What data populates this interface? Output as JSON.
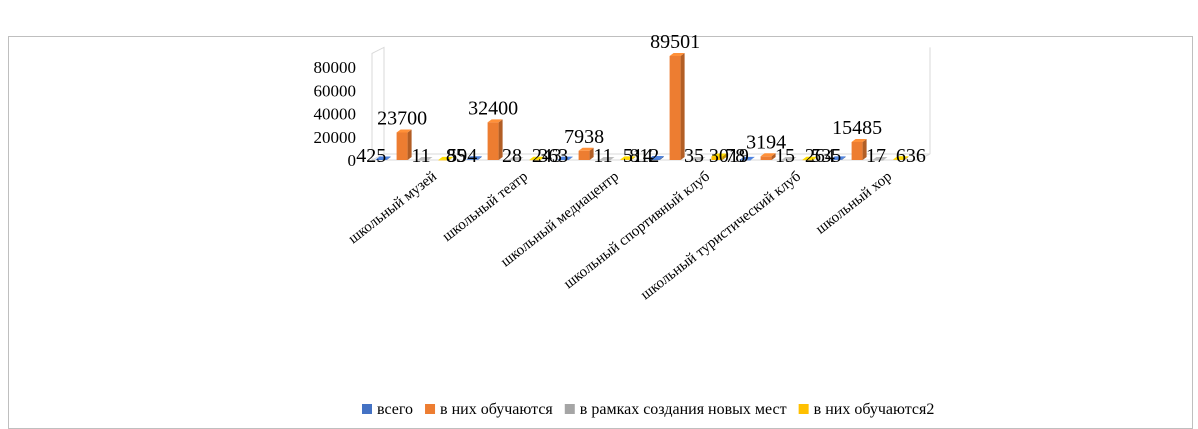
{
  "chart_data": {
    "type": "bar",
    "title": "",
    "top_fragment_text": "",
    "categories": [
      "школьный музей",
      "школьный театр",
      "школьный медиацентр",
      "школьный спортивный клуб",
      "школьный туристический клуб",
      "школьный хор"
    ],
    "series": [
      {
        "name": "всего",
        "values": [
          425,
          594,
          363,
          812,
          78,
          535
        ],
        "color": "#4472c4"
      },
      {
        "name": "в них обучаются",
        "values": [
          23700,
          32400,
          7938,
          89501,
          3194,
          15485
        ],
        "color": "#ed7d31"
      },
      {
        "name": "в рамках создания новых мест",
        "values": [
          11,
          28,
          11,
          35,
          15,
          17
        ],
        "color": "#a5a5a5"
      },
      {
        "name": "в них обучаются2",
        "values": [
          85,
          243,
          514,
          3019,
          264,
          636
        ],
        "color": "#ffc000"
      }
    ],
    "data_labels_printed": [
      [
        "425",
        "23700",
        "11",
        "85"
      ],
      [
        "594",
        "32400",
        "28",
        "243"
      ],
      [
        "363",
        "7938",
        "11",
        "514"
      ],
      [
        "812",
        "89501",
        "35",
        "3019"
      ],
      [
        "78",
        "3194",
        "15",
        "264"
      ],
      [
        "535",
        "15485",
        "17",
        "636"
      ]
    ],
    "yticks": [
      0,
      20000,
      40000,
      60000,
      80000
    ],
    "ylim": [
      0,
      90000
    ],
    "grid": false,
    "legend_position": "bottom-right",
    "style": "3d-clustered-column"
  }
}
